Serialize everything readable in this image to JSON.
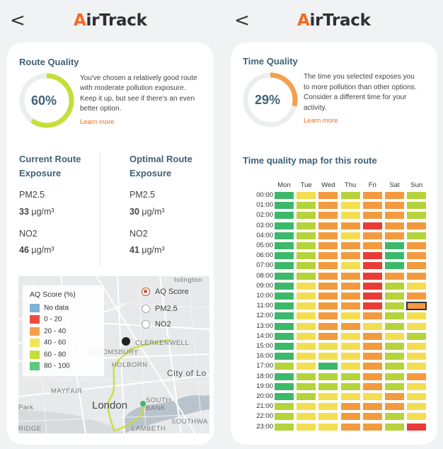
{
  "app": {
    "name_prefix": "A",
    "name_rest": "irTrack"
  },
  "left": {
    "title": "Route Quality",
    "percent": "60%",
    "percent_value": 0.6,
    "description_lines": [
      "You've chosen a relatively good route",
      "with moderate pollution exposure.",
      "Keep it up, but see if there's an even",
      "better option."
    ],
    "learn_more": "Learn more",
    "current": {
      "title_1": "Current Route",
      "title_2": "Exposure",
      "pm_label": "PM2.5",
      "pm_value": "33",
      "no_label": "NO2",
      "no_value": "46",
      "unit": "μg/m³"
    },
    "optimal": {
      "title_1": "Optimal Route",
      "title_2": "Exposure",
      "pm_label": "PM2.5",
      "pm_value": "30",
      "no_label": "NO2",
      "no_value": "41",
      "unit": "μg/m³"
    },
    "map": {
      "legend_title": "AQ Score (%)",
      "legend": [
        {
          "label": "No data",
          "color": "#7fb2d4"
        },
        {
          "label": "0 - 20",
          "color": "#ee4b43"
        },
        {
          "label": "20 - 40",
          "color": "#f5a04d"
        },
        {
          "label": "40 - 60",
          "color": "#f2e45a"
        },
        {
          "label": "60 - 80",
          "color": "#c6de3a"
        },
        {
          "label": "80 - 100",
          "color": "#5cc97f"
        }
      ],
      "options": [
        "AQ Score",
        "PM2.5",
        "NO2"
      ],
      "selected_option": "AQ Score",
      "places": {
        "islington": "Islington",
        "clerkenwell": "CLERKENWELL",
        "bloomsbury": "BLOOMSBURY",
        "holborn": "HOLBORN",
        "city": "City of Lo",
        "mayfair": "MAYFAIR",
        "london": "London",
        "south_bank": "SOUTH BANK",
        "park": "Park",
        "southwark": "SOUTHWA",
        "lambeth": "LAMBETH",
        "bridge": "RIDGE"
      }
    }
  },
  "right": {
    "title": "Time Quality",
    "percent": "29%",
    "percent_value": 0.29,
    "description_lines": [
      "The time you selected exposes you",
      "to more pollution than other options.",
      "Consider a different time for your",
      "activity."
    ],
    "learn_more": "Learn more",
    "grid_title": "Time quality map for this route",
    "colors": {
      "g": "#3cb86a",
      "l": "#b5d33a",
      "y": "#f3de52",
      "o": "#f39a3f",
      "r": "#ea3b36"
    },
    "days": [
      "Mon",
      "Tue",
      "Wed",
      "Thu",
      "Fri",
      "Sat",
      "Sun"
    ],
    "hours": [
      "00:00",
      "01:00",
      "02:00",
      "03:00",
      "04:00",
      "05:00",
      "06:00",
      "07:00",
      "08:00",
      "09:00",
      "10:00",
      "11:00",
      "12:00",
      "13:00",
      "14:00",
      "15:00",
      "16:00",
      "17:00",
      "18:00",
      "19:00",
      "20:00",
      "21:00",
      "22:00",
      "23:00"
    ],
    "rows": [
      "gyolool",
      "gloyool",
      "gloyool",
      "glooroo",
      "gloyool",
      "glooogo",
      "gloorgo",
      "gloyrgo",
      "glooroo",
      "gyoorly",
      "gyoorlo",
      "gyoorlo",
      "gyoyoly",
      "gyooyly",
      "gyoyoyl",
      "gyyyoly",
      "gyyyoly",
      "lygyoly",
      "glllolo",
      "gllloly",
      "glyyyoy",
      "lyyoooy",
      "lyyooly",
      "lyyoolr"
    ],
    "selected": {
      "day_index": 6,
      "hour_index": 11
    }
  }
}
